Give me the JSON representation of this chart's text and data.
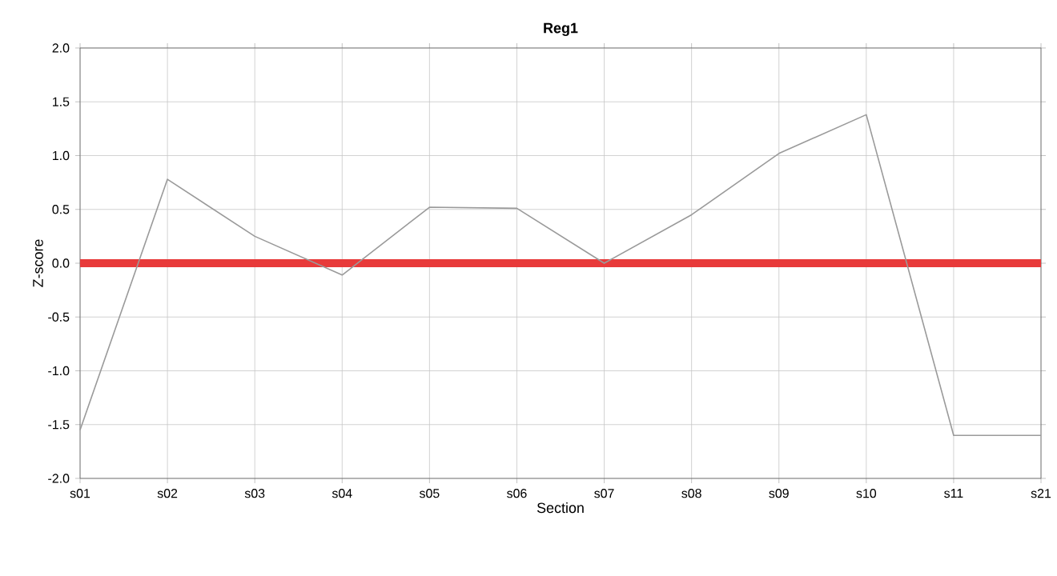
{
  "chart_data": {
    "type": "line",
    "title": "Reg1",
    "xlabel": "Section",
    "ylabel": "Z-score",
    "categories": [
      "s01",
      "s02",
      "s03",
      "s04",
      "s05",
      "s06",
      "s07",
      "s08",
      "s09",
      "s10",
      "s11",
      "s21"
    ],
    "series": [
      {
        "color": "#9a9a9a",
        "values": [
          -1.55,
          0.78,
          0.25,
          -0.11,
          0.52,
          0.51,
          0.0,
          0.45,
          1.02,
          1.38,
          -1.6,
          -1.6
        ]
      }
    ],
    "ylim": [
      -2,
      2
    ],
    "yticks": [
      {
        "value": -2,
        "label": "-2.0"
      },
      -1.5,
      {
        "value": -1,
        "label": "-1.0"
      },
      -0.5,
      {
        "value": 0,
        "label": "0.0"
      },
      0.5,
      {
        "value": 1,
        "label": "1.0"
      },
      1.5,
      {
        "value": 2,
        "label": "2.0"
      }
    ],
    "ref_lines": [
      {
        "axis": "y",
        "value": 0,
        "color": "#e83a3a"
      }
    ],
    "grid": true,
    "marker": "none",
    "line_style": "solid"
  }
}
